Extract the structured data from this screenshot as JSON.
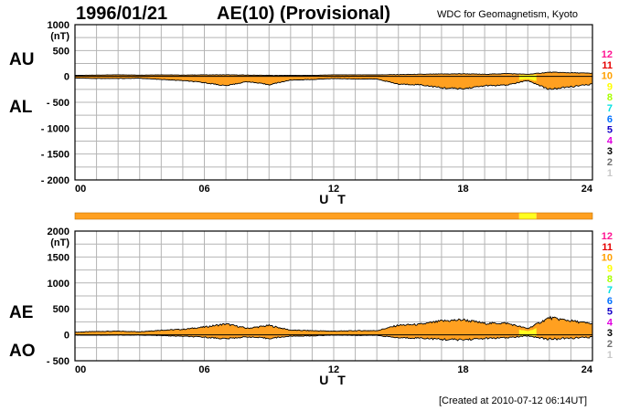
{
  "header": {
    "date": "1996/01/21",
    "title": "AE(10) (Provisional)",
    "source": "WDC for Geomagnetism, Kyoto",
    "created": "[Created at 2010-07-12 06:14UT]"
  },
  "colors": {
    "fill_main": "#ffa020",
    "fill_highlight": "#ffff20",
    "line": "#000000",
    "grid": "#b4b4b4"
  },
  "station_scale": {
    "labels": [
      "12",
      "11",
      "10",
      "9",
      "8",
      "7",
      "6",
      "5",
      "4",
      "3",
      "2",
      "1"
    ],
    "colors": [
      "#ff1493",
      "#e60000",
      "#ffa000",
      "#ffff00",
      "#a8ff00",
      "#00e0e0",
      "#0070ff",
      "#1400c8",
      "#e000e0",
      "#000000",
      "#707070",
      "#c8c8c8"
    ]
  },
  "coverage_bar": {
    "segments": [
      {
        "from": 0,
        "to": 20.6,
        "stations": 10
      },
      {
        "from": 20.6,
        "to": 21.4,
        "stations": 9
      },
      {
        "from": 21.4,
        "to": 24,
        "stations": 10
      }
    ]
  },
  "chart_data": [
    {
      "type": "area",
      "title": "AU / AL",
      "series_labels": [
        "AU",
        "AL"
      ],
      "ylabel": "(nT)",
      "xlabel": "U T",
      "xlim": [
        0,
        24
      ],
      "ylim": [
        -2000,
        1000
      ],
      "yticks": [
        1000,
        500,
        0,
        -500,
        -1000,
        -1500,
        -2000
      ],
      "ytick_labels": [
        "1000",
        "500",
        "0",
        "- 500",
        "- 1000",
        "- 1500",
        "- 2000"
      ],
      "xticks": [
        0,
        6,
        12,
        18,
        24
      ],
      "xtick_labels": [
        "00",
        "06",
        "12",
        "18",
        "24"
      ],
      "grid": true,
      "x": [
        0,
        1,
        2,
        3,
        4,
        5,
        6,
        7,
        8,
        9,
        10,
        11,
        12,
        13,
        14,
        15,
        16,
        17,
        18,
        19,
        20,
        21,
        22,
        23,
        24
      ],
      "series": [
        {
          "name": "AU",
          "values": [
            20,
            25,
            30,
            25,
            30,
            25,
            30,
            30,
            25,
            20,
            20,
            20,
            30,
            30,
            30,
            35,
            40,
            45,
            50,
            40,
            55,
            40,
            80,
            70,
            60
          ]
        },
        {
          "name": "AL",
          "values": [
            -30,
            -40,
            -40,
            -35,
            -60,
            -80,
            -120,
            -180,
            -100,
            -160,
            -70,
            -60,
            -40,
            -50,
            -50,
            -150,
            -160,
            -220,
            -240,
            -180,
            -170,
            -80,
            -250,
            -200,
            -150
          ]
        }
      ]
    },
    {
      "type": "area",
      "title": "AE / AO",
      "series_labels": [
        "AE",
        "AO"
      ],
      "ylabel": "(nT)",
      "xlabel": "U T",
      "xlim": [
        0,
        24
      ],
      "ylim": [
        -500,
        2000
      ],
      "yticks": [
        2000,
        1500,
        1000,
        500,
        0,
        -500
      ],
      "ytick_labels": [
        "2000",
        "1500",
        "1000",
        "500",
        "0",
        "- 500"
      ],
      "xticks": [
        0,
        6,
        12,
        18,
        24
      ],
      "xtick_labels": [
        "00",
        "06",
        "12",
        "18",
        "24"
      ],
      "grid": true,
      "x": [
        0,
        1,
        2,
        3,
        4,
        5,
        6,
        7,
        8,
        9,
        10,
        11,
        12,
        13,
        14,
        15,
        16,
        17,
        18,
        19,
        20,
        21,
        22,
        23,
        24
      ],
      "series": [
        {
          "name": "AE",
          "values": [
            50,
            65,
            70,
            60,
            90,
            105,
            150,
            210,
            125,
            180,
            90,
            80,
            70,
            80,
            80,
            185,
            200,
            265,
            290,
            220,
            225,
            120,
            330,
            270,
            210
          ]
        },
        {
          "name": "AO",
          "values": [
            -5,
            -8,
            -5,
            -5,
            -15,
            -28,
            -45,
            -75,
            -38,
            -70,
            -25,
            -20,
            -5,
            -10,
            -10,
            -58,
            -60,
            -88,
            -95,
            -70,
            -58,
            -20,
            -85,
            -65,
            -45
          ]
        }
      ]
    }
  ]
}
